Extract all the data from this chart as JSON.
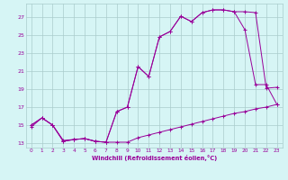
{
  "line1_x": [
    0,
    1,
    2,
    3,
    4,
    5,
    6,
    7,
    8,
    9,
    10,
    11,
    12,
    13,
    14,
    15,
    16,
    17,
    18,
    19,
    20,
    21,
    22,
    23
  ],
  "line1_y": [
    15.0,
    15.8,
    15.0,
    13.2,
    13.4,
    13.5,
    13.2,
    13.1,
    16.5,
    17.0,
    21.5,
    20.4,
    24.8,
    25.4,
    27.1,
    26.5,
    27.5,
    27.8,
    27.8,
    27.6,
    27.6,
    27.5,
    19.1,
    19.2
  ],
  "line2_x": [
    0,
    1,
    2,
    3,
    4,
    5,
    6,
    7,
    8,
    9,
    10,
    11,
    12,
    13,
    14,
    15,
    16,
    17,
    18,
    19,
    20,
    21,
    22,
    23
  ],
  "line2_y": [
    15.0,
    15.8,
    15.0,
    13.2,
    13.4,
    13.5,
    13.2,
    13.1,
    16.5,
    17.0,
    21.5,
    20.4,
    24.8,
    25.4,
    27.1,
    26.5,
    27.5,
    27.8,
    27.8,
    27.6,
    25.6,
    19.5,
    19.5,
    17.3
  ],
  "line3_x": [
    0,
    1,
    2,
    3,
    4,
    5,
    6,
    7,
    8,
    9,
    10,
    11,
    12,
    13,
    14,
    15,
    16,
    17,
    18,
    19,
    20,
    21,
    22,
    23
  ],
  "line3_y": [
    14.8,
    15.8,
    15.0,
    13.3,
    13.4,
    13.5,
    13.2,
    13.1,
    13.1,
    13.1,
    13.6,
    13.9,
    14.2,
    14.5,
    14.8,
    15.1,
    15.4,
    15.7,
    16.0,
    16.3,
    16.5,
    16.8,
    17.0,
    17.3
  ],
  "color": "#990099",
  "bg_color": "#d6f5f5",
  "xlabel": "Windchill (Refroidissement éolien,°C)",
  "yticks": [
    13,
    15,
    17,
    19,
    21,
    23,
    25,
    27
  ],
  "xticks": [
    0,
    1,
    2,
    3,
    4,
    5,
    6,
    7,
    8,
    9,
    10,
    11,
    12,
    13,
    14,
    15,
    16,
    17,
    18,
    19,
    20,
    21,
    22,
    23
  ],
  "ylim": [
    12.5,
    28.5
  ],
  "xlim": [
    -0.5,
    23.5
  ],
  "figw": 3.2,
  "figh": 2.0,
  "dpi": 100
}
